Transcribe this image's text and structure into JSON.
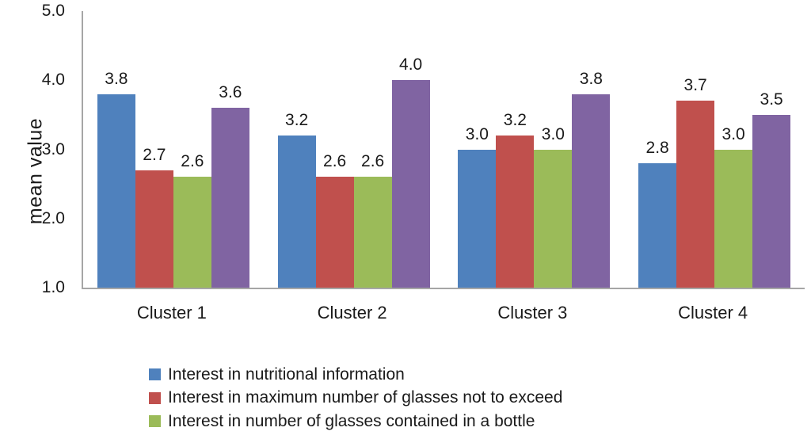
{
  "chart_data": {
    "type": "bar",
    "title": "",
    "xlabel": "",
    "ylabel": "mean value",
    "ylim": [
      1.0,
      5.0
    ],
    "yticks": [
      "5.0",
      "4.0",
      "3.0",
      "2.0",
      "1.0"
    ],
    "grid": false,
    "data_labels": true,
    "legend_position": "bottom-left",
    "categories": [
      "Cluster 1",
      "Cluster 2",
      "Cluster 3",
      "Cluster 4"
    ],
    "series": [
      {
        "name": "Interest in nutritional information",
        "color": "#4F81BD",
        "in_legend": true,
        "values": [
          3.8,
          3.2,
          3.0,
          2.8
        ]
      },
      {
        "name": "Interest in maximum number of glasses not to exceed",
        "color": "#C0504D",
        "in_legend": true,
        "values": [
          2.7,
          2.6,
          3.2,
          3.7
        ]
      },
      {
        "name": "Interest in number of glasses contained in a bottle",
        "color": "#9BBB59",
        "in_legend": true,
        "values": [
          2.6,
          2.6,
          3.0,
          3.0
        ]
      },
      {
        "name": "",
        "color": "#8064A2",
        "in_legend": false,
        "values": [
          3.6,
          4.0,
          3.8,
          3.5
        ]
      }
    ],
    "axis_color": "#A6A6A6",
    "label_text_color": "#1A1A1A"
  }
}
